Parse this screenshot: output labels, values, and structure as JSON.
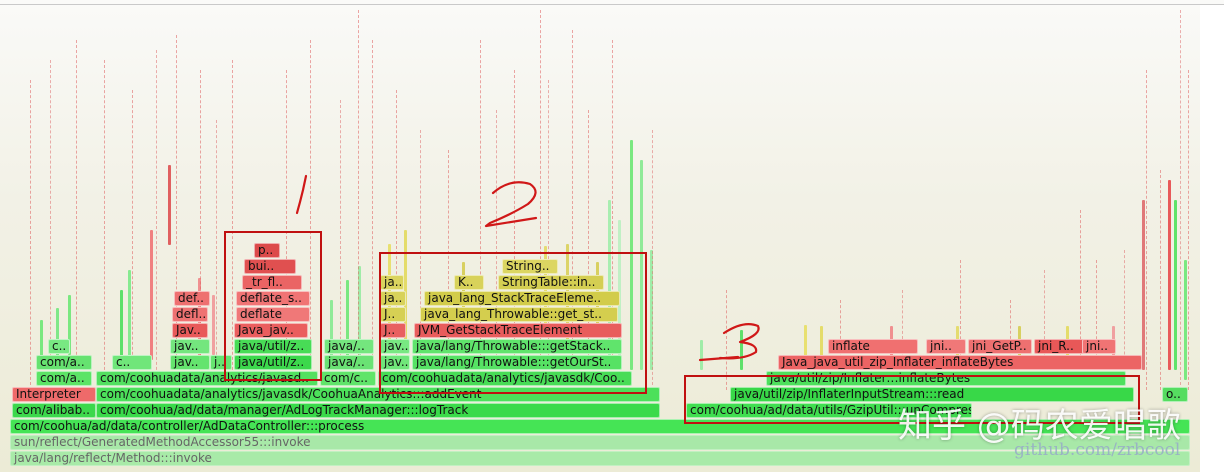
{
  "frames": [
    {
      "text": "sun/reflect/GeneratedMethodAccessor55:::invoke",
      "color": "#a8e8a8",
      "gray": true
    },
    {
      "text": "java/lang/reflect/Method:::invoke",
      "color": "#a8eaa8",
      "gray": true
    },
    {
      "text": "com/coohua/ad/data/controller/AdDataController:::process",
      "color": "#45e455"
    },
    {
      "text": "com/alibab..",
      "color": "#3cd84c"
    },
    {
      "text": "com/coohua/ad/data/manager/AdLogTrackManager:::logTrack",
      "color": "#3ada4a"
    },
    {
      "text": "com/coohua/ad/data/utils/GzipUtil:::unCompress",
      "color": "#40de50"
    },
    {
      "text": "Interpreter",
      "color": "#ee6a6a"
    },
    {
      "text": "com/coohuadata/analytics/javasdk/CoohuaAnalytics:::addEvent",
      "color": "#4ce05a"
    },
    {
      "text": "java/util/zip/InflaterInputStream:::read",
      "color": "#38d848"
    },
    {
      "text": "o..",
      "color": "#55dd60"
    },
    {
      "text": "com/a..",
      "color": "#5ce466"
    },
    {
      "text": "com/coohuadata/analytics/javasd..",
      "color": "#52e060"
    },
    {
      "text": "com/c..",
      "color": "#60e46a"
    },
    {
      "text": "com/coohuadata/analytics/javasdk/Coo..",
      "color": "#48dc56"
    },
    {
      "text": "java/util/zip/Inflater:::inflateBytes",
      "color": "#4ee05c"
    },
    {
      "text": "com/a..",
      "color": "#66e270"
    },
    {
      "text": "c..",
      "color": "#70e67a"
    },
    {
      "text": "jav..",
      "color": "#64e46e"
    },
    {
      "text": "j..",
      "color": "#66e470"
    },
    {
      "text": "java/util/z..",
      "color": "#3cd84c"
    },
    {
      "text": "java/..",
      "color": "#6ae274"
    },
    {
      "text": "jav..",
      "color": "#70e67a"
    },
    {
      "text": "java/lang/Throwable:::getOurSt..",
      "color": "#56e264"
    },
    {
      "text": "Java_java_util_zip_Inflater_inflateBytes",
      "color": "#ec6464"
    },
    {
      "text": "c..",
      "color": "#78e882"
    },
    {
      "text": "jav..",
      "color": "#74e67e"
    },
    {
      "text": "java/util/z..",
      "color": "#48dc56"
    },
    {
      "text": "java/..",
      "color": "#74e67e"
    },
    {
      "text": "jav..",
      "color": "#78e882"
    },
    {
      "text": "java/lang/Throwable:::getStack..",
      "color": "#60e46c"
    },
    {
      "text": "inflate",
      "color": "#f07070"
    },
    {
      "text": "jni..",
      "color": "#f07878"
    },
    {
      "text": "jni_GetP..",
      "color": "#ee7070"
    },
    {
      "text": "jni_R..",
      "color": "#e85858"
    },
    {
      "text": "jni..",
      "color": "#f07474"
    },
    {
      "text": "Jav..",
      "color": "#e85a5a"
    },
    {
      "text": "Java_jav..",
      "color": "#ea5e5e"
    },
    {
      "text": "J..",
      "color": "#e86060"
    },
    {
      "text": "JVM_GetStackTraceElement",
      "color": "#e85c5c"
    },
    {
      "text": "defl..",
      "color": "#ee7272"
    },
    {
      "text": "deflate",
      "color": "#f07878"
    },
    {
      "text": "J..",
      "color": "#d6d054"
    },
    {
      "text": "java_lang_Throwable::get_st..",
      "color": "#d4ce4e"
    },
    {
      "text": "def..",
      "color": "#ee7070"
    },
    {
      "text": "deflate_s..",
      "color": "#f07474"
    },
    {
      "text": "ja..",
      "color": "#d8d25a"
    },
    {
      "text": "java_lang_StackTraceEleme..",
      "color": "#d2cc4a"
    },
    {
      "text": "_tr_fl..",
      "color": "#ea6464"
    },
    {
      "text": "ja..",
      "color": "#dad45e"
    },
    {
      "text": "K..",
      "color": "#d8d25a"
    },
    {
      "text": "StringTable::in..",
      "color": "#d4ce52"
    },
    {
      "text": "bui..",
      "color": "#e05050"
    },
    {
      "text": "String..",
      "color": "#dcd662"
    },
    {
      "text": "p..",
      "color": "#dc4a4a"
    }
  ],
  "annotations": {
    "labels": [
      "1",
      "2",
      "3"
    ]
  },
  "watermark": {
    "main": "知乎 @码农爱唱歌",
    "sub": "github.com/zrbcool"
  }
}
